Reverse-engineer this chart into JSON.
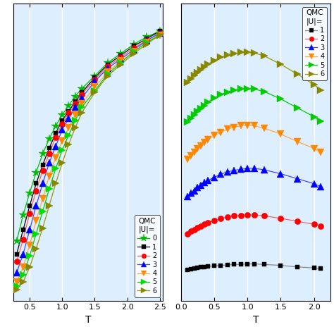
{
  "background_color": "#ddeeff",
  "left_plot": {
    "xlabel": "T",
    "xlim": [
      0.25,
      2.55
    ],
    "ylim": [
      -0.05,
      1.55
    ],
    "xticks": [
      0.5,
      1.0,
      1.5,
      2.0,
      2.5
    ],
    "yticks": [],
    "series": [
      {
        "label": "0",
        "marker_color": "#00bb00",
        "line_color": "#00bb00",
        "marker": "*",
        "T": [
          0.3,
          0.4,
          0.5,
          0.6,
          0.7,
          0.8,
          0.9,
          1.0,
          1.1,
          1.2,
          1.3,
          1.5,
          1.7,
          1.9,
          2.1,
          2.3,
          2.5
        ],
        "y": [
          0.27,
          0.41,
          0.53,
          0.64,
          0.74,
          0.82,
          0.89,
          0.95,
          1.0,
          1.05,
          1.09,
          1.16,
          1.23,
          1.28,
          1.33,
          1.37,
          1.4
        ]
      },
      {
        "label": "1",
        "marker_color": "#000000",
        "line_color": "#000000",
        "marker": "s",
        "T": [
          0.3,
          0.4,
          0.5,
          0.6,
          0.7,
          0.8,
          0.9,
          1.0,
          1.1,
          1.2,
          1.3,
          1.5,
          1.7,
          1.9,
          2.1,
          2.3,
          2.5
        ],
        "y": [
          0.2,
          0.33,
          0.46,
          0.58,
          0.68,
          0.77,
          0.85,
          0.92,
          0.97,
          1.02,
          1.07,
          1.15,
          1.22,
          1.27,
          1.32,
          1.36,
          1.4
        ]
      },
      {
        "label": "2",
        "marker_color": "#ff0000",
        "line_color": "#ff6060",
        "marker": "o",
        "T": [
          0.3,
          0.4,
          0.5,
          0.6,
          0.7,
          0.8,
          0.9,
          1.0,
          1.1,
          1.2,
          1.3,
          1.5,
          1.7,
          1.9,
          2.1,
          2.3,
          2.5
        ],
        "y": [
          0.16,
          0.28,
          0.42,
          0.54,
          0.65,
          0.74,
          0.83,
          0.9,
          0.96,
          1.01,
          1.06,
          1.14,
          1.21,
          1.26,
          1.31,
          1.35,
          1.39
        ]
      },
      {
        "label": "3",
        "marker_color": "#0000ff",
        "line_color": "#4444ff",
        "marker": "^",
        "T": [
          0.3,
          0.4,
          0.5,
          0.6,
          0.7,
          0.8,
          0.9,
          1.0,
          1.1,
          1.2,
          1.3,
          1.5,
          1.7,
          1.9,
          2.1,
          2.3,
          2.5
        ],
        "y": [
          0.1,
          0.2,
          0.33,
          0.46,
          0.58,
          0.69,
          0.78,
          0.87,
          0.93,
          0.99,
          1.04,
          1.13,
          1.2,
          1.25,
          1.3,
          1.35,
          1.39
        ]
      },
      {
        "label": "4",
        "marker_color": "#ff8800",
        "line_color": "#ffaa44",
        "marker": "v",
        "T": [
          0.3,
          0.4,
          0.5,
          0.6,
          0.7,
          0.8,
          0.9,
          1.0,
          1.1,
          1.2,
          1.3,
          1.5,
          1.7,
          1.9,
          2.1,
          2.3,
          2.5
        ],
        "y": [
          0.05,
          0.13,
          0.25,
          0.38,
          0.5,
          0.62,
          0.72,
          0.81,
          0.88,
          0.95,
          1.01,
          1.1,
          1.18,
          1.24,
          1.29,
          1.34,
          1.38
        ]
      },
      {
        "label": "5",
        "marker_color": "#00dd00",
        "line_color": "#00cc00",
        "marker": ">",
        "T": [
          0.3,
          0.4,
          0.5,
          0.6,
          0.7,
          0.8,
          0.9,
          1.0,
          1.1,
          1.2,
          1.3,
          1.5,
          1.7,
          1.9,
          2.1,
          2.3,
          2.5
        ],
        "y": [
          0.03,
          0.09,
          0.19,
          0.31,
          0.43,
          0.55,
          0.66,
          0.76,
          0.84,
          0.92,
          0.99,
          1.08,
          1.17,
          1.23,
          1.29,
          1.34,
          1.38
        ]
      },
      {
        "label": "6",
        "marker_color": "#888800",
        "line_color": "#999900",
        "marker": ">",
        "T": [
          0.3,
          0.4,
          0.5,
          0.6,
          0.7,
          0.8,
          0.9,
          1.0,
          1.1,
          1.2,
          1.3,
          1.5,
          1.7,
          1.9,
          2.1,
          2.3,
          2.5
        ],
        "y": [
          0.01,
          0.05,
          0.13,
          0.23,
          0.34,
          0.46,
          0.58,
          0.69,
          0.79,
          0.88,
          0.96,
          1.07,
          1.16,
          1.22,
          1.28,
          1.33,
          1.38
        ]
      }
    ]
  },
  "right_plot": {
    "xlabel": "T",
    "xlim": [
      0.0,
      2.25
    ],
    "ylim": [
      0.0,
      0.6
    ],
    "xticks": [
      0.0,
      0.5,
      1.0,
      1.5,
      2.0
    ],
    "yticks": [],
    "series": [
      {
        "label": "1",
        "marker_color": "#000000",
        "line_color": "#888888",
        "marker": "s",
        "T": [
          0.1,
          0.15,
          0.2,
          0.25,
          0.3,
          0.35,
          0.4,
          0.5,
          0.6,
          0.7,
          0.8,
          0.9,
          1.0,
          1.1,
          1.25,
          1.5,
          1.75,
          2.0,
          2.1
        ],
        "y": [
          0.062,
          0.064,
          0.065,
          0.066,
          0.067,
          0.068,
          0.069,
          0.07,
          0.071,
          0.072,
          0.073,
          0.073,
          0.074,
          0.074,
          0.073,
          0.071,
          0.068,
          0.066,
          0.065
        ]
      },
      {
        "label": "2",
        "marker_color": "#ff0000",
        "line_color": "#ff6060",
        "marker": "o",
        "T": [
          0.1,
          0.15,
          0.2,
          0.25,
          0.3,
          0.35,
          0.4,
          0.5,
          0.6,
          0.7,
          0.8,
          0.9,
          1.0,
          1.1,
          1.25,
          1.5,
          1.75,
          2.0,
          2.1
        ],
        "y": [
          0.135,
          0.14,
          0.143,
          0.147,
          0.15,
          0.154,
          0.157,
          0.162,
          0.166,
          0.169,
          0.171,
          0.172,
          0.173,
          0.173,
          0.171,
          0.166,
          0.16,
          0.154,
          0.15
        ]
      },
      {
        "label": "3",
        "marker_color": "#0000ff",
        "line_color": "#4444ff",
        "marker": "^",
        "T": [
          0.1,
          0.15,
          0.2,
          0.25,
          0.3,
          0.35,
          0.4,
          0.5,
          0.6,
          0.7,
          0.8,
          0.9,
          1.0,
          1.1,
          1.25,
          1.5,
          1.75,
          2.0,
          2.1
        ],
        "y": [
          0.21,
          0.217,
          0.222,
          0.228,
          0.233,
          0.238,
          0.242,
          0.249,
          0.255,
          0.26,
          0.263,
          0.265,
          0.267,
          0.267,
          0.264,
          0.256,
          0.246,
          0.236,
          0.23
        ]
      },
      {
        "label": "4",
        "marker_color": "#ff8800",
        "line_color": "#ffaa44",
        "marker": "v",
        "T": [
          0.1,
          0.15,
          0.2,
          0.25,
          0.3,
          0.35,
          0.4,
          0.5,
          0.6,
          0.7,
          0.8,
          0.9,
          1.0,
          1.1,
          1.25,
          1.5,
          1.75,
          2.0,
          2.1
        ],
        "y": [
          0.285,
          0.293,
          0.3,
          0.307,
          0.313,
          0.319,
          0.325,
          0.333,
          0.34,
          0.346,
          0.35,
          0.353,
          0.354,
          0.353,
          0.348,
          0.336,
          0.321,
          0.307,
          0.299
        ]
      },
      {
        "label": "5",
        "marker_color": "#00cc00",
        "line_color": "#00cc00",
        "marker": ">",
        "T": [
          0.1,
          0.15,
          0.2,
          0.25,
          0.3,
          0.35,
          0.4,
          0.5,
          0.6,
          0.7,
          0.8,
          0.9,
          1.0,
          1.1,
          1.25,
          1.5,
          1.75,
          2.0,
          2.1
        ],
        "y": [
          0.36,
          0.368,
          0.375,
          0.382,
          0.388,
          0.394,
          0.4,
          0.409,
          0.416,
          0.421,
          0.425,
          0.427,
          0.428,
          0.427,
          0.422,
          0.407,
          0.389,
          0.371,
          0.362
        ]
      },
      {
        "label": "6",
        "marker_color": "#888800",
        "line_color": "#999900",
        "marker": ">",
        "T": [
          0.1,
          0.15,
          0.2,
          0.25,
          0.3,
          0.35,
          0.4,
          0.5,
          0.6,
          0.7,
          0.8,
          0.9,
          1.0,
          1.1,
          1.25,
          1.5,
          1.75,
          2.0,
          2.1
        ],
        "y": [
          0.44,
          0.447,
          0.454,
          0.46,
          0.466,
          0.472,
          0.477,
          0.485,
          0.491,
          0.496,
          0.499,
          0.501,
          0.501,
          0.5,
          0.494,
          0.477,
          0.457,
          0.436,
          0.425
        ]
      }
    ]
  },
  "legend_left": {
    "labels": [
      "0",
      "1",
      "2",
      "3",
      "4",
      "5",
      "6"
    ],
    "markers": [
      "*",
      "s",
      "o",
      "^",
      "v",
      ">",
      ">"
    ],
    "marker_colors": [
      "#00bb00",
      "#000000",
      "#ff0000",
      "#0000ff",
      "#ff8800",
      "#00dd00",
      "#888800"
    ],
    "line_colors": [
      "#00bb00",
      "#000000",
      "#ff6060",
      "#4444ff",
      "#ffaa44",
      "#00cc00",
      "#999900"
    ]
  },
  "legend_right": {
    "labels": [
      "1",
      "2",
      "3",
      "4",
      "5",
      "6"
    ],
    "markers": [
      "s",
      "o",
      "^",
      "v",
      ">",
      ">"
    ],
    "marker_colors": [
      "#000000",
      "#ff0000",
      "#0000ff",
      "#ff8800",
      "#00cc00",
      "#888800"
    ],
    "line_colors": [
      "#888888",
      "#ff6060",
      "#4444ff",
      "#ffaa44",
      "#00cc00",
      "#999900"
    ]
  }
}
